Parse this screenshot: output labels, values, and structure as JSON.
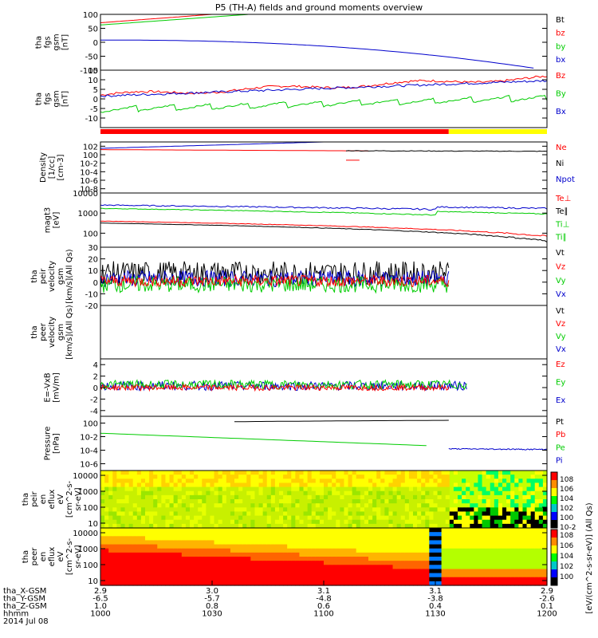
{
  "title": "P5 (TH-A) fields and ground moments overview",
  "chart_data": {
    "type": "line",
    "title": "P5 (TH-A) fields and ground moments overview",
    "panels": [
      {
        "id": "fgs",
        "ylabel": [
          "tha",
          "fgs",
          "gsm",
          "[nT]"
        ],
        "scale": "linear",
        "ylim": [
          -100,
          100
        ],
        "ticks": [
          100,
          50,
          0,
          -50,
          -100
        ],
        "legend": [
          {
            "label": "Bt",
            "color": "#000000"
          },
          {
            "label": "bz",
            "color": "#ff0000"
          },
          {
            "label": "by",
            "color": "#00cc00"
          },
          {
            "label": "bx",
            "color": "#0000cc"
          }
        ]
      },
      {
        "id": "fgs_dsl",
        "ylabel": [
          "tha",
          "fgs",
          "gsm",
          "[nT]"
        ],
        "scale": "linear",
        "ylim": [
          -15,
          15
        ],
        "ticks": [
          15,
          10,
          5,
          0,
          -5,
          -10
        ],
        "legend": [
          {
            "label": "Bz",
            "color": "#ff0000"
          },
          {
            "label": "By",
            "color": "#00cc00"
          },
          {
            "label": "Bx",
            "color": "#0000cc"
          }
        ]
      },
      {
        "id": "density",
        "ylabel": [
          "Density",
          "[1/cc]",
          "[cm-3]"
        ],
        "scale": "log",
        "ylim": [
          1e-09,
          1000
        ],
        "ticks": [
          "10^2",
          "10^0",
          "10^-2",
          "10^-4",
          "10^-6",
          "10^-8"
        ],
        "legend": [
          {
            "label": "Ne",
            "color": "#ff0000"
          },
          {
            "label": "Ni",
            "color": "#000000"
          },
          {
            "label": "Npot",
            "color": "#0000cc"
          }
        ]
      },
      {
        "id": "temp",
        "ylabel": [
          "magt3",
          "[eV]"
        ],
        "scale": "log",
        "ylim": [
          20,
          10000
        ],
        "ticks": [
          "10000",
          "1000",
          "100"
        ],
        "legend": [
          {
            "label": "Te⊥",
            "color": "#ff0000"
          },
          {
            "label": "Te∥",
            "color": "#000000"
          },
          {
            "label": "Ti⊥",
            "color": "#00cc00"
          },
          {
            "label": "Ti∥",
            "color": "#00cc00"
          }
        ]
      },
      {
        "id": "peir_vel",
        "ylabel": [
          "tha",
          "peir",
          "velocity",
          "gsm",
          "[km/s](All Qs)"
        ],
        "scale": "linear",
        "ylim": [
          -20,
          30
        ],
        "ticks": [
          30,
          20,
          10,
          0,
          -10,
          -20
        ],
        "legend": [
          {
            "label": "Vt",
            "color": "#000000"
          },
          {
            "label": "Vz",
            "color": "#ff0000"
          },
          {
            "label": "Vy",
            "color": "#00cc00"
          },
          {
            "label": "Vx",
            "color": "#0000cc"
          }
        ]
      },
      {
        "id": "peer_vel",
        "ylabel": [
          "tha",
          "peer",
          "velocity",
          "gsm",
          "[km/s](All Qs)"
        ],
        "scale": "linear",
        "ylim": [
          -20,
          30
        ],
        "ticks": [],
        "legend": [
          {
            "label": "Vt",
            "color": "#000000"
          },
          {
            "label": "Vz",
            "color": "#ff0000"
          },
          {
            "label": "Vy",
            "color": "#00cc00"
          },
          {
            "label": "Vx",
            "color": "#0000cc"
          }
        ]
      },
      {
        "id": "efield",
        "ylabel": [
          "E=-VxB",
          "[mV/m]"
        ],
        "scale": "linear",
        "ylim": [
          -5,
          5
        ],
        "ticks": [
          4,
          2,
          0,
          -2,
          -4
        ],
        "legend": [
          {
            "label": "Ez",
            "color": "#ff0000"
          },
          {
            "label": "Ey",
            "color": "#00cc00"
          },
          {
            "label": "Ex",
            "color": "#0000cc"
          }
        ]
      },
      {
        "id": "pressure",
        "ylabel": [
          "Pressure",
          "[nPa]"
        ],
        "scale": "log",
        "ylim": [
          1e-07,
          10
        ],
        "ticks": [
          "10^0",
          "10^-2",
          "10^-4",
          "10^-6"
        ],
        "legend": [
          {
            "label": "Pt",
            "color": "#000000"
          },
          {
            "label": "Pb",
            "color": "#ff0000"
          },
          {
            "label": "Pe",
            "color": "#00cc00"
          },
          {
            "label": "Pi",
            "color": "#0000cc"
          }
        ]
      },
      {
        "id": "peir_spec",
        "ylabel": [
          "tha",
          "peir",
          "en",
          "eflux",
          "eV",
          "[cm^2-s-",
          "sr-eV]"
        ],
        "scale": "log",
        "ylim": [
          5,
          20000
        ],
        "ticks": [
          "10000",
          "1000",
          "100",
          "10"
        ]
      },
      {
        "id": "peer_spec",
        "ylabel": [
          "tha",
          "peer",
          "en",
          "eflux",
          "eV",
          "[cm^2-s-",
          "sr-eV]"
        ],
        "scale": "log",
        "ylim": [
          5,
          20000
        ],
        "ticks": [
          "10000",
          "1000",
          "100",
          "10"
        ]
      }
    ],
    "colorbar": {
      "label": "[eV/(cm^2-s-sr-eV)] (All Qs)",
      "ticks": [
        "10^8",
        "10^6",
        "10^4",
        "10^2",
        "10^0",
        "10^-2"
      ],
      "ticks2": [
        "10^8",
        "10^6",
        "10^4",
        "10^2",
        "10^0"
      ]
    },
    "x_axis": {
      "rows": [
        {
          "label": "tha_X-GSM",
          "values": [
            "2.9",
            "3.0",
            "3.1",
            "3.1",
            "2.9"
          ]
        },
        {
          "label": "tha_Y-GSM",
          "values": [
            "-6.5",
            "-5.7",
            "-4.8",
            "-3.8",
            "-2.6"
          ]
        },
        {
          "label": "tha_Z-GSM",
          "values": [
            "1.0",
            "0.8",
            "0.6",
            "0.4",
            "0.1"
          ]
        },
        {
          "label": "hhmm",
          "values": [
            "1000",
            "1030",
            "1100",
            "1130",
            "1200"
          ]
        }
      ],
      "date": "2014 Jul 08",
      "range_min": [
        0,
        120
      ]
    },
    "series_shapes": {
      "bz_start": 70,
      "bz_end": 100,
      "by_start": 62,
      "by_end": 100,
      "bx_start": 8,
      "bx_end": -100
    }
  }
}
